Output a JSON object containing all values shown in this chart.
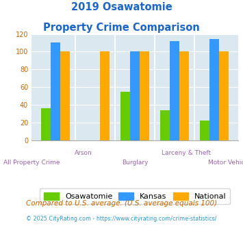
{
  "title_line1": "2019 Osawatomie",
  "title_line2": "Property Crime Comparison",
  "categories": [
    "All Property Crime",
    "Arson",
    "Burglary",
    "Larceny & Theft",
    "Motor Vehicle Theft"
  ],
  "upper_labels": [
    "",
    "Arson",
    "",
    "Larceny & Theft",
    ""
  ],
  "lower_labels": [
    "All Property Crime",
    "",
    "Burglary",
    "",
    "Motor Vehicle Theft"
  ],
  "osawatomie": [
    36,
    0,
    55,
    34,
    22
  ],
  "kansas": [
    110,
    0,
    100,
    112,
    114
  ],
  "national": [
    100,
    100,
    100,
    100,
    100
  ],
  "color_osawatomie": "#66cc00",
  "color_kansas": "#3399ff",
  "color_national": "#ffaa00",
  "ylim": [
    0,
    120
  ],
  "yticks": [
    0,
    20,
    40,
    60,
    80,
    100,
    120
  ],
  "bg_color": "#dce8f0",
  "legend_labels": [
    "Osawatomie",
    "Kansas",
    "National"
  ],
  "footnote1": "Compared to U.S. average. (U.S. average equals 100)",
  "footnote2": "© 2025 CityRating.com - https://www.cityrating.com/crime-statistics/",
  "title_color": "#1a66cc",
  "xtick_color": "#9966aa",
  "ytick_color": "#cc6600",
  "footnote1_color": "#cc6600",
  "footnote2_color": "#3399cc"
}
